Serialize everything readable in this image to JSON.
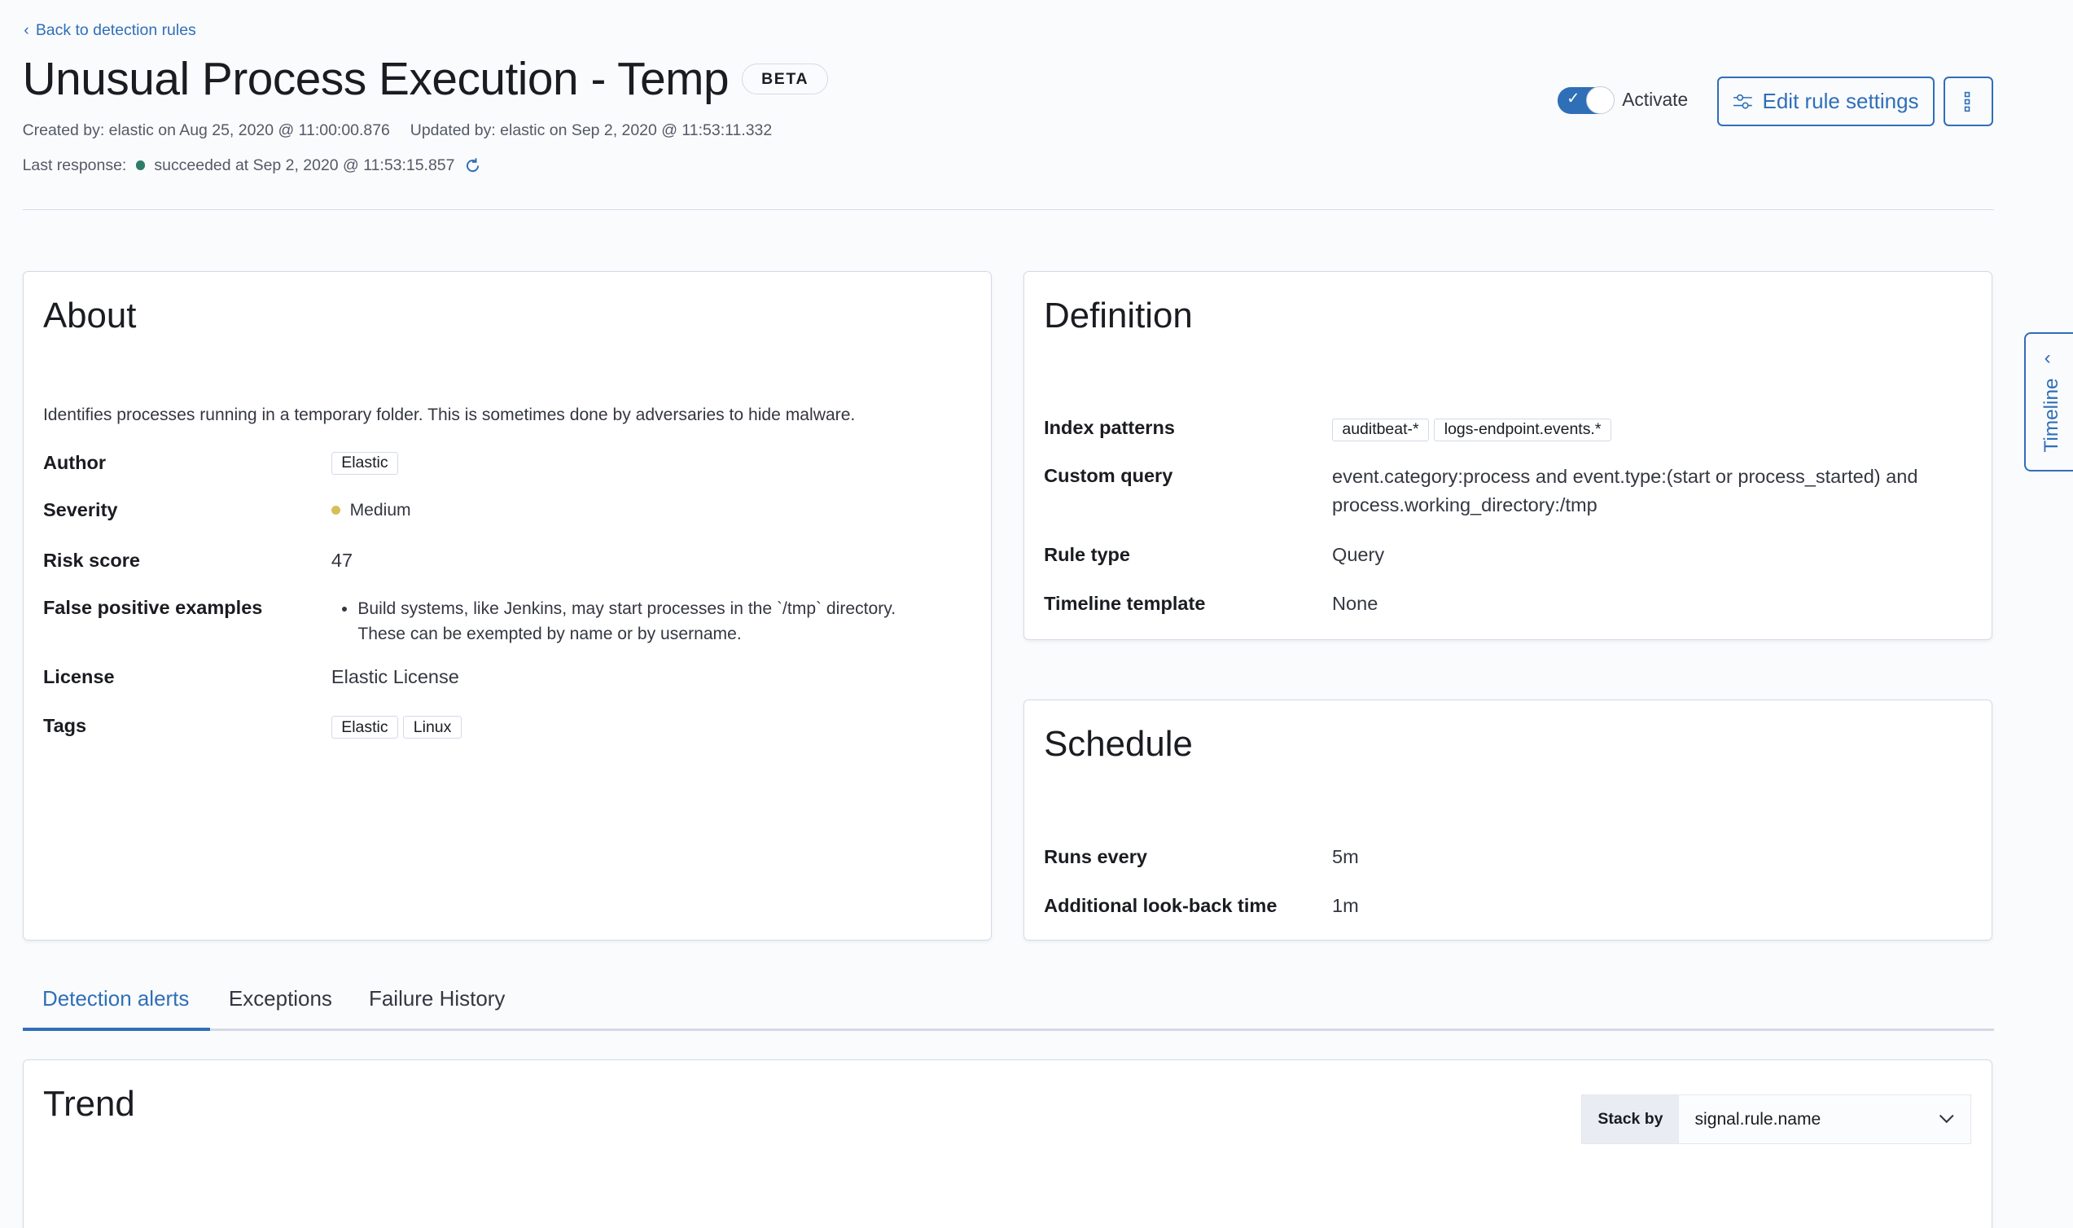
{
  "header": {
    "back_link": "Back to detection rules",
    "title": "Unusual Process Execution - Temp",
    "beta_badge": "BETA",
    "created": "Created by: elastic on Aug 25, 2020 @ 11:00:00.876",
    "updated": "Updated by: elastic on Sep 2, 2020 @ 11:53:11.332",
    "last_response_label": "Last response:",
    "last_response_value": "succeeded at Sep 2, 2020 @ 11:53:15.857",
    "status_color": "#2e7d6b",
    "activate_label": "Activate",
    "activate_on": true,
    "edit_button": "Edit rule settings"
  },
  "about": {
    "title": "About",
    "description": "Identifies processes running in a temporary folder. This is sometimes done by adversaries to hide malware.",
    "author_label": "Author",
    "author": "Elastic",
    "severity_label": "Severity",
    "severity": "Medium",
    "severity_color": "#d6bf57",
    "risk_label": "Risk score",
    "risk": "47",
    "fp_label": "False positive examples",
    "fp": "Build systems, like Jenkins, may start processes in the `/tmp` directory. These can be exempted by name or by username.",
    "license_label": "License",
    "license": "Elastic License",
    "tags_label": "Tags",
    "tags": [
      "Elastic",
      "Linux"
    ]
  },
  "definition": {
    "title": "Definition",
    "index_label": "Index patterns",
    "index": [
      "auditbeat-*",
      "logs-endpoint.events.*"
    ],
    "query_label": "Custom query",
    "query": "event.category:process and event.type:(start or process_started) and process.working_directory:/tmp",
    "type_label": "Rule type",
    "type": "Query",
    "template_label": "Timeline template",
    "template": "None"
  },
  "schedule": {
    "title": "Schedule",
    "runs_label": "Runs every",
    "runs": "5m",
    "lookback_label": "Additional look-back time",
    "lookback": "1m"
  },
  "tabs": [
    {
      "label": "Detection alerts",
      "active": true
    },
    {
      "label": "Exceptions"
    },
    {
      "label": "Failure History"
    }
  ],
  "trend": {
    "title": "Trend",
    "stack_by_label": "Stack by",
    "stack_by_value": "signal.rule.name"
  },
  "timeline": {
    "label": "Timeline"
  },
  "accent_color": "#2f6fb8"
}
